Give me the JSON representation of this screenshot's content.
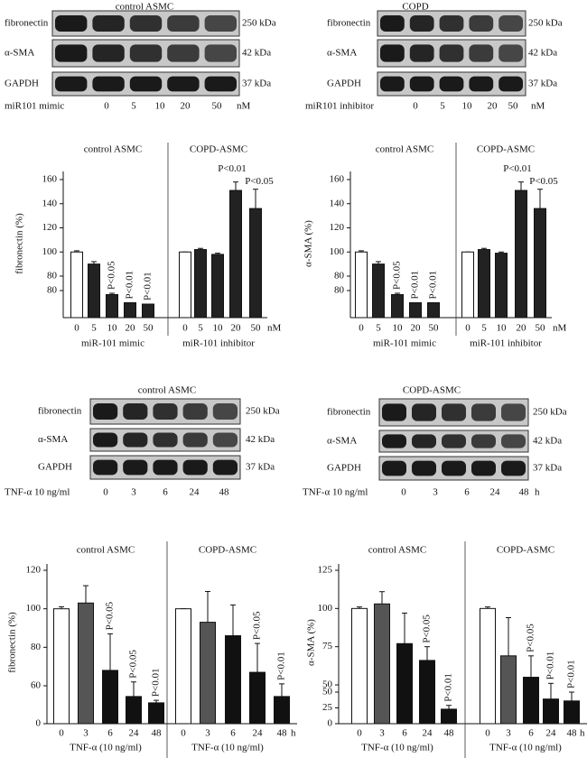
{
  "blots": [
    {
      "title": "control ASMC",
      "rows": [
        {
          "label": "fibronectin",
          "size": "250 kDa"
        },
        {
          "label": "α-SMA",
          "size": "42 kDa"
        },
        {
          "label": "GAPDH",
          "size": "37 kDa"
        }
      ],
      "treatment": "miR101 mimic",
      "lanes": [
        "0",
        "5",
        "10",
        "20",
        "50"
      ],
      "unit": "nM"
    },
    {
      "title": "COPD",
      "rows": [
        {
          "label": "fibronectin",
          "size": "250 kDa"
        },
        {
          "label": "α-SMA",
          "size": "42 kDa"
        },
        {
          "label": "GAPDH",
          "size": "37 kDa"
        }
      ],
      "treatment": "miR101 inhibitor",
      "lanes": [
        "0",
        "5",
        "10",
        "20",
        "50"
      ],
      "unit": "nM"
    },
    {
      "title": "control ASMC",
      "rows": [
        {
          "label": "fibronectin",
          "size": "250 kDa"
        },
        {
          "label": "α-SMA",
          "size": "42 kDa"
        },
        {
          "label": "GAPDH",
          "size": "37 kDa"
        }
      ],
      "treatment": "TNF-α 10 ng/ml",
      "lanes": [
        "0",
        "3",
        "6",
        "24",
        "48"
      ]
    },
    {
      "title": "COPD-ASMC",
      "rows": [
        {
          "label": "fibronectin",
          "size": "250 kDa"
        },
        {
          "label": "α-SMA",
          "size": "42 kDa"
        },
        {
          "label": "GAPDH",
          "size": "37 kDa"
        }
      ],
      "treatment": "TNF-α 10 ng/ml",
      "lanes": [
        "0",
        "3",
        "6",
        "24",
        "48"
      ],
      "unit": "h"
    }
  ],
  "chart_data": [
    {
      "type": "bar",
      "ylabel": "fibronectin (%)",
      "unit": "nM",
      "segments": [
        {
          "ylim": [
            60,
            80
          ],
          "yticks": [
            80
          ]
        },
        {
          "ylim": [
            80,
            160
          ],
          "yticks": [
            80,
            100,
            120,
            140,
            160
          ]
        }
      ],
      "panels": [
        {
          "title": "control ASMC",
          "xlabel": "miR-101 mimic",
          "categories": [
            "0",
            "5",
            "10",
            "20",
            "50"
          ],
          "values": [
            100,
            90,
            77,
            71,
            70
          ],
          "errors": [
            1,
            2,
            1,
            0,
            0
          ],
          "colors": [
            "#ffffff",
            "#222222",
            "#222222",
            "#222222",
            "#222222"
          ],
          "annotations": [
            null,
            null,
            "P<0.05",
            "P<0.01",
            "P<0.01"
          ],
          "annotation_rotated": true
        },
        {
          "title": "COPD-ASMC",
          "xlabel": "miR-101 inhibitor",
          "categories": [
            "0",
            "5",
            "10",
            "20",
            "50"
          ],
          "values": [
            100,
            102,
            98,
            151,
            136
          ],
          "errors": [
            0,
            1,
            1,
            7,
            16
          ],
          "colors": [
            "#ffffff",
            "#222222",
            "#222222",
            "#222222",
            "#222222"
          ],
          "annotations": [
            null,
            null,
            null,
            "P<0.01",
            "P<0.05"
          ],
          "annotation_rotated": false
        }
      ]
    },
    {
      "type": "bar",
      "ylabel": "α-SMA (%)",
      "unit": "nM",
      "segments": [
        {
          "ylim": [
            60,
            80
          ],
          "yticks": [
            80
          ]
        },
        {
          "ylim": [
            80,
            160
          ],
          "yticks": [
            80,
            100,
            120,
            140,
            160
          ]
        }
      ],
      "panels": [
        {
          "title": "control ASMC",
          "xlabel": "miR-101 mimic",
          "categories": [
            "0",
            "5",
            "10",
            "20",
            "50"
          ],
          "values": [
            100,
            90,
            77,
            71,
            71
          ],
          "errors": [
            1,
            2,
            1,
            0,
            0
          ],
          "colors": [
            "#ffffff",
            "#222222",
            "#222222",
            "#222222",
            "#222222"
          ],
          "annotations": [
            null,
            null,
            "P<0.05",
            "P<0.01",
            "P<0.01"
          ],
          "annotation_rotated": true
        },
        {
          "title": "COPD-ASMC",
          "xlabel": "miR-101 inhibitor",
          "categories": [
            "0",
            "5",
            "10",
            "20",
            "50"
          ],
          "values": [
            100,
            102,
            99,
            151,
            136
          ],
          "errors": [
            0,
            1,
            1,
            7,
            16
          ],
          "colors": [
            "#ffffff",
            "#222222",
            "#222222",
            "#222222",
            "#222222"
          ],
          "annotations": [
            null,
            null,
            null,
            "P<0.01",
            "P<0.05"
          ],
          "annotation_rotated": false
        }
      ]
    },
    {
      "type": "bar",
      "ylabel": "fibronectin (%)",
      "unit": "h",
      "segments": [
        {
          "ylim": [
            0,
            60
          ],
          "yticks": [
            0,
            60
          ]
        },
        {
          "ylim": [
            60,
            120
          ],
          "yticks": [
            80,
            100,
            120
          ]
        }
      ],
      "panels": [
        {
          "title": "control ASMC",
          "xlabel": "TNF-α (10 ng/ml)",
          "categories": [
            "0",
            "3",
            "6",
            "24",
            "48"
          ],
          "values": [
            100,
            103,
            68,
            43,
            33
          ],
          "errors": [
            1,
            9,
            19,
            19,
            4
          ],
          "colors": [
            "#ffffff",
            "#555555",
            "#111111",
            "#111111",
            "#111111"
          ],
          "annotations": [
            null,
            null,
            "P<0.05",
            "P<0.05",
            "P<0.01"
          ],
          "annotation_rotated": true
        },
        {
          "title": "COPD-ASMC",
          "xlabel": "TNF-α (10 ng/ml)",
          "categories": [
            "0",
            "3",
            "6",
            "24",
            "48"
          ],
          "values": [
            100,
            93,
            86,
            67,
            43
          ],
          "errors": [
            0,
            16,
            16,
            15,
            18
          ],
          "colors": [
            "#ffffff",
            "#555555",
            "#111111",
            "#111111",
            "#111111"
          ],
          "annotations": [
            null,
            null,
            null,
            "P<0.05",
            "P<0.01"
          ],
          "annotation_rotated": true
        }
      ]
    },
    {
      "type": "bar",
      "ylabel": "α-SMA (%)",
      "unit": "h",
      "segments": [
        {
          "ylim": [
            0,
            50
          ],
          "yticks": [
            0,
            25,
            50
          ]
        },
        {
          "ylim": [
            50,
            125
          ],
          "yticks": [
            50,
            75,
            100,
            125
          ]
        }
      ],
      "panels": [
        {
          "title": "control ASMC",
          "xlabel": "TNF-α (10 ng/ml)",
          "categories": [
            "0",
            "3",
            "6",
            "24",
            "48"
          ],
          "values": [
            100,
            103,
            77,
            66,
            23
          ],
          "errors": [
            1,
            8,
            20,
            9,
            6
          ],
          "colors": [
            "#ffffff",
            "#555555",
            "#111111",
            "#111111",
            "#111111"
          ],
          "annotations": [
            null,
            null,
            null,
            "P<0.05",
            "P<0.01"
          ],
          "annotation_rotated": true
        },
        {
          "title": "COPD-ASMC",
          "xlabel": "TNF-α (10 ng/ml)",
          "categories": [
            "0",
            "3",
            "6",
            "24",
            "48"
          ],
          "values": [
            100,
            69,
            55,
            39,
            36
          ],
          "errors": [
            1,
            25,
            14,
            12,
            14
          ],
          "colors": [
            "#ffffff",
            "#555555",
            "#111111",
            "#111111",
            "#111111"
          ],
          "annotations": [
            null,
            null,
            "P<0.05",
            "P<0.01",
            "P<0.01"
          ],
          "annotation_rotated": true
        }
      ]
    }
  ]
}
